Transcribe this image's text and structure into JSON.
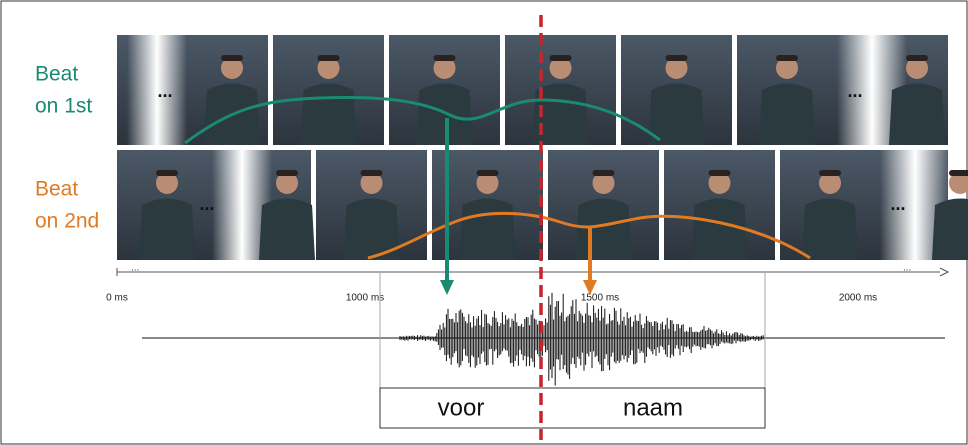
{
  "rows": [
    {
      "label_lines": [
        "Beat",
        "on 1st"
      ],
      "ellipses": [
        "...",
        "..."
      ]
    },
    {
      "label_lines": [
        "Beat",
        "on 2nd"
      ],
      "ellipses": [
        "...",
        "..."
      ]
    }
  ],
  "timeline": {
    "start_ellipsis": "...",
    "end_ellipsis": "...",
    "labels": [
      "0 ms",
      "1000 ms",
      "1500 ms",
      "2000 ms"
    ]
  },
  "words": [
    "voor",
    "naam"
  ]
}
